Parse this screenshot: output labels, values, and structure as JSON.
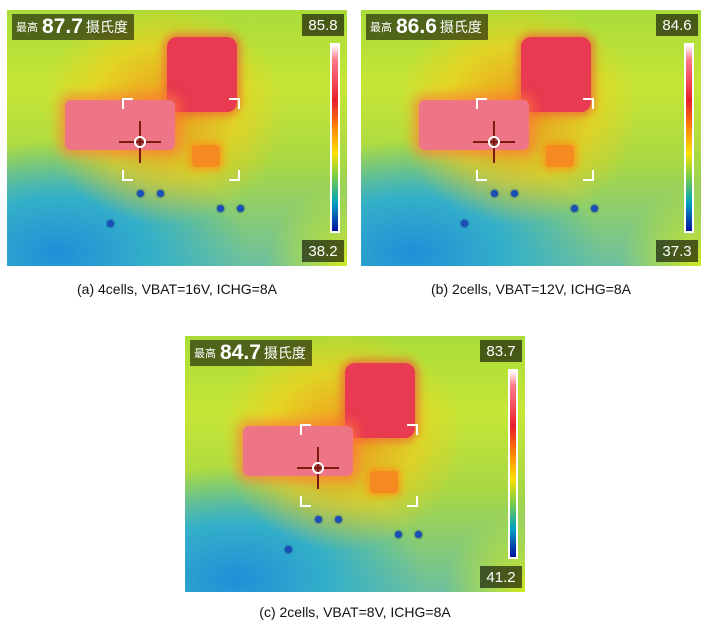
{
  "panels": [
    {
      "max_label": "最高",
      "max_value": "87.7",
      "max_unit": "摄氏度",
      "scale_max": "85.8",
      "scale_min": "38.2",
      "caption": "(a) 4cells, VBAT=16V, ICHG=8A"
    },
    {
      "max_label": "最高",
      "max_value": "86.6",
      "max_unit": "摄氏度",
      "scale_max": "84.6",
      "scale_min": "37.3",
      "caption": "(b) 2cells, VBAT=12V, ICHG=8A"
    },
    {
      "max_label": "最高",
      "max_value": "84.7",
      "max_unit": "摄氏度",
      "scale_max": "83.7",
      "scale_min": "41.2",
      "caption": "(c) 2cells, VBAT=8V, ICHG=8A"
    }
  ],
  "colors": {
    "hot_peak": "#e83a50",
    "hot_pad": "#ee7585",
    "label_bg": "#000000"
  }
}
